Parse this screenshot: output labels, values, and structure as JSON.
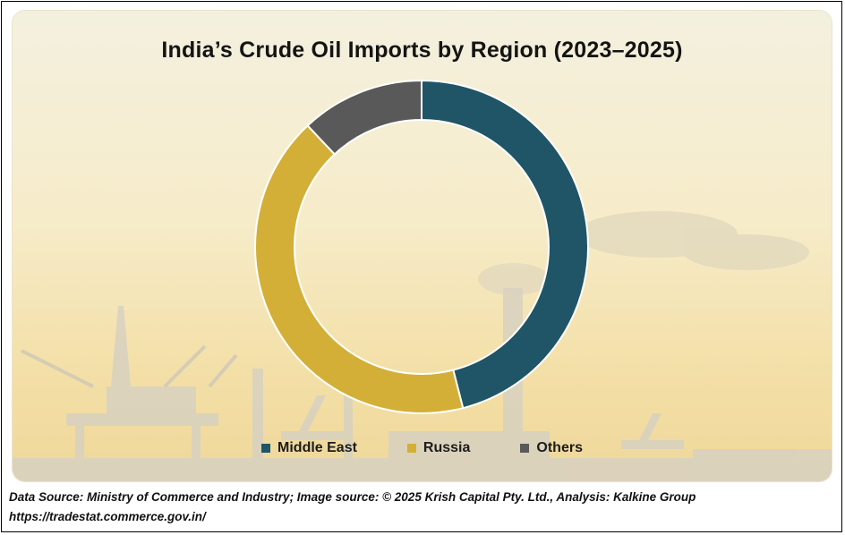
{
  "chart_data": {
    "type": "pie",
    "title": "India’s Crude Oil Imports by Region (2023–2025)",
    "categories": [
      "Middle East",
      "Russia",
      "Others"
    ],
    "values": [
      46,
      42,
      12
    ],
    "colors": [
      "#1f5566",
      "#d4af37",
      "#595959"
    ],
    "donut": true,
    "legend_position": "bottom"
  },
  "footer": {
    "source_line": "Data Source: Ministry of Commerce and Industry; Image source: © 2025 Krish Capital Pty. Ltd., Analysis: Kalkine Group",
    "url_line": "https://tradestat.commerce.gov.in/"
  }
}
